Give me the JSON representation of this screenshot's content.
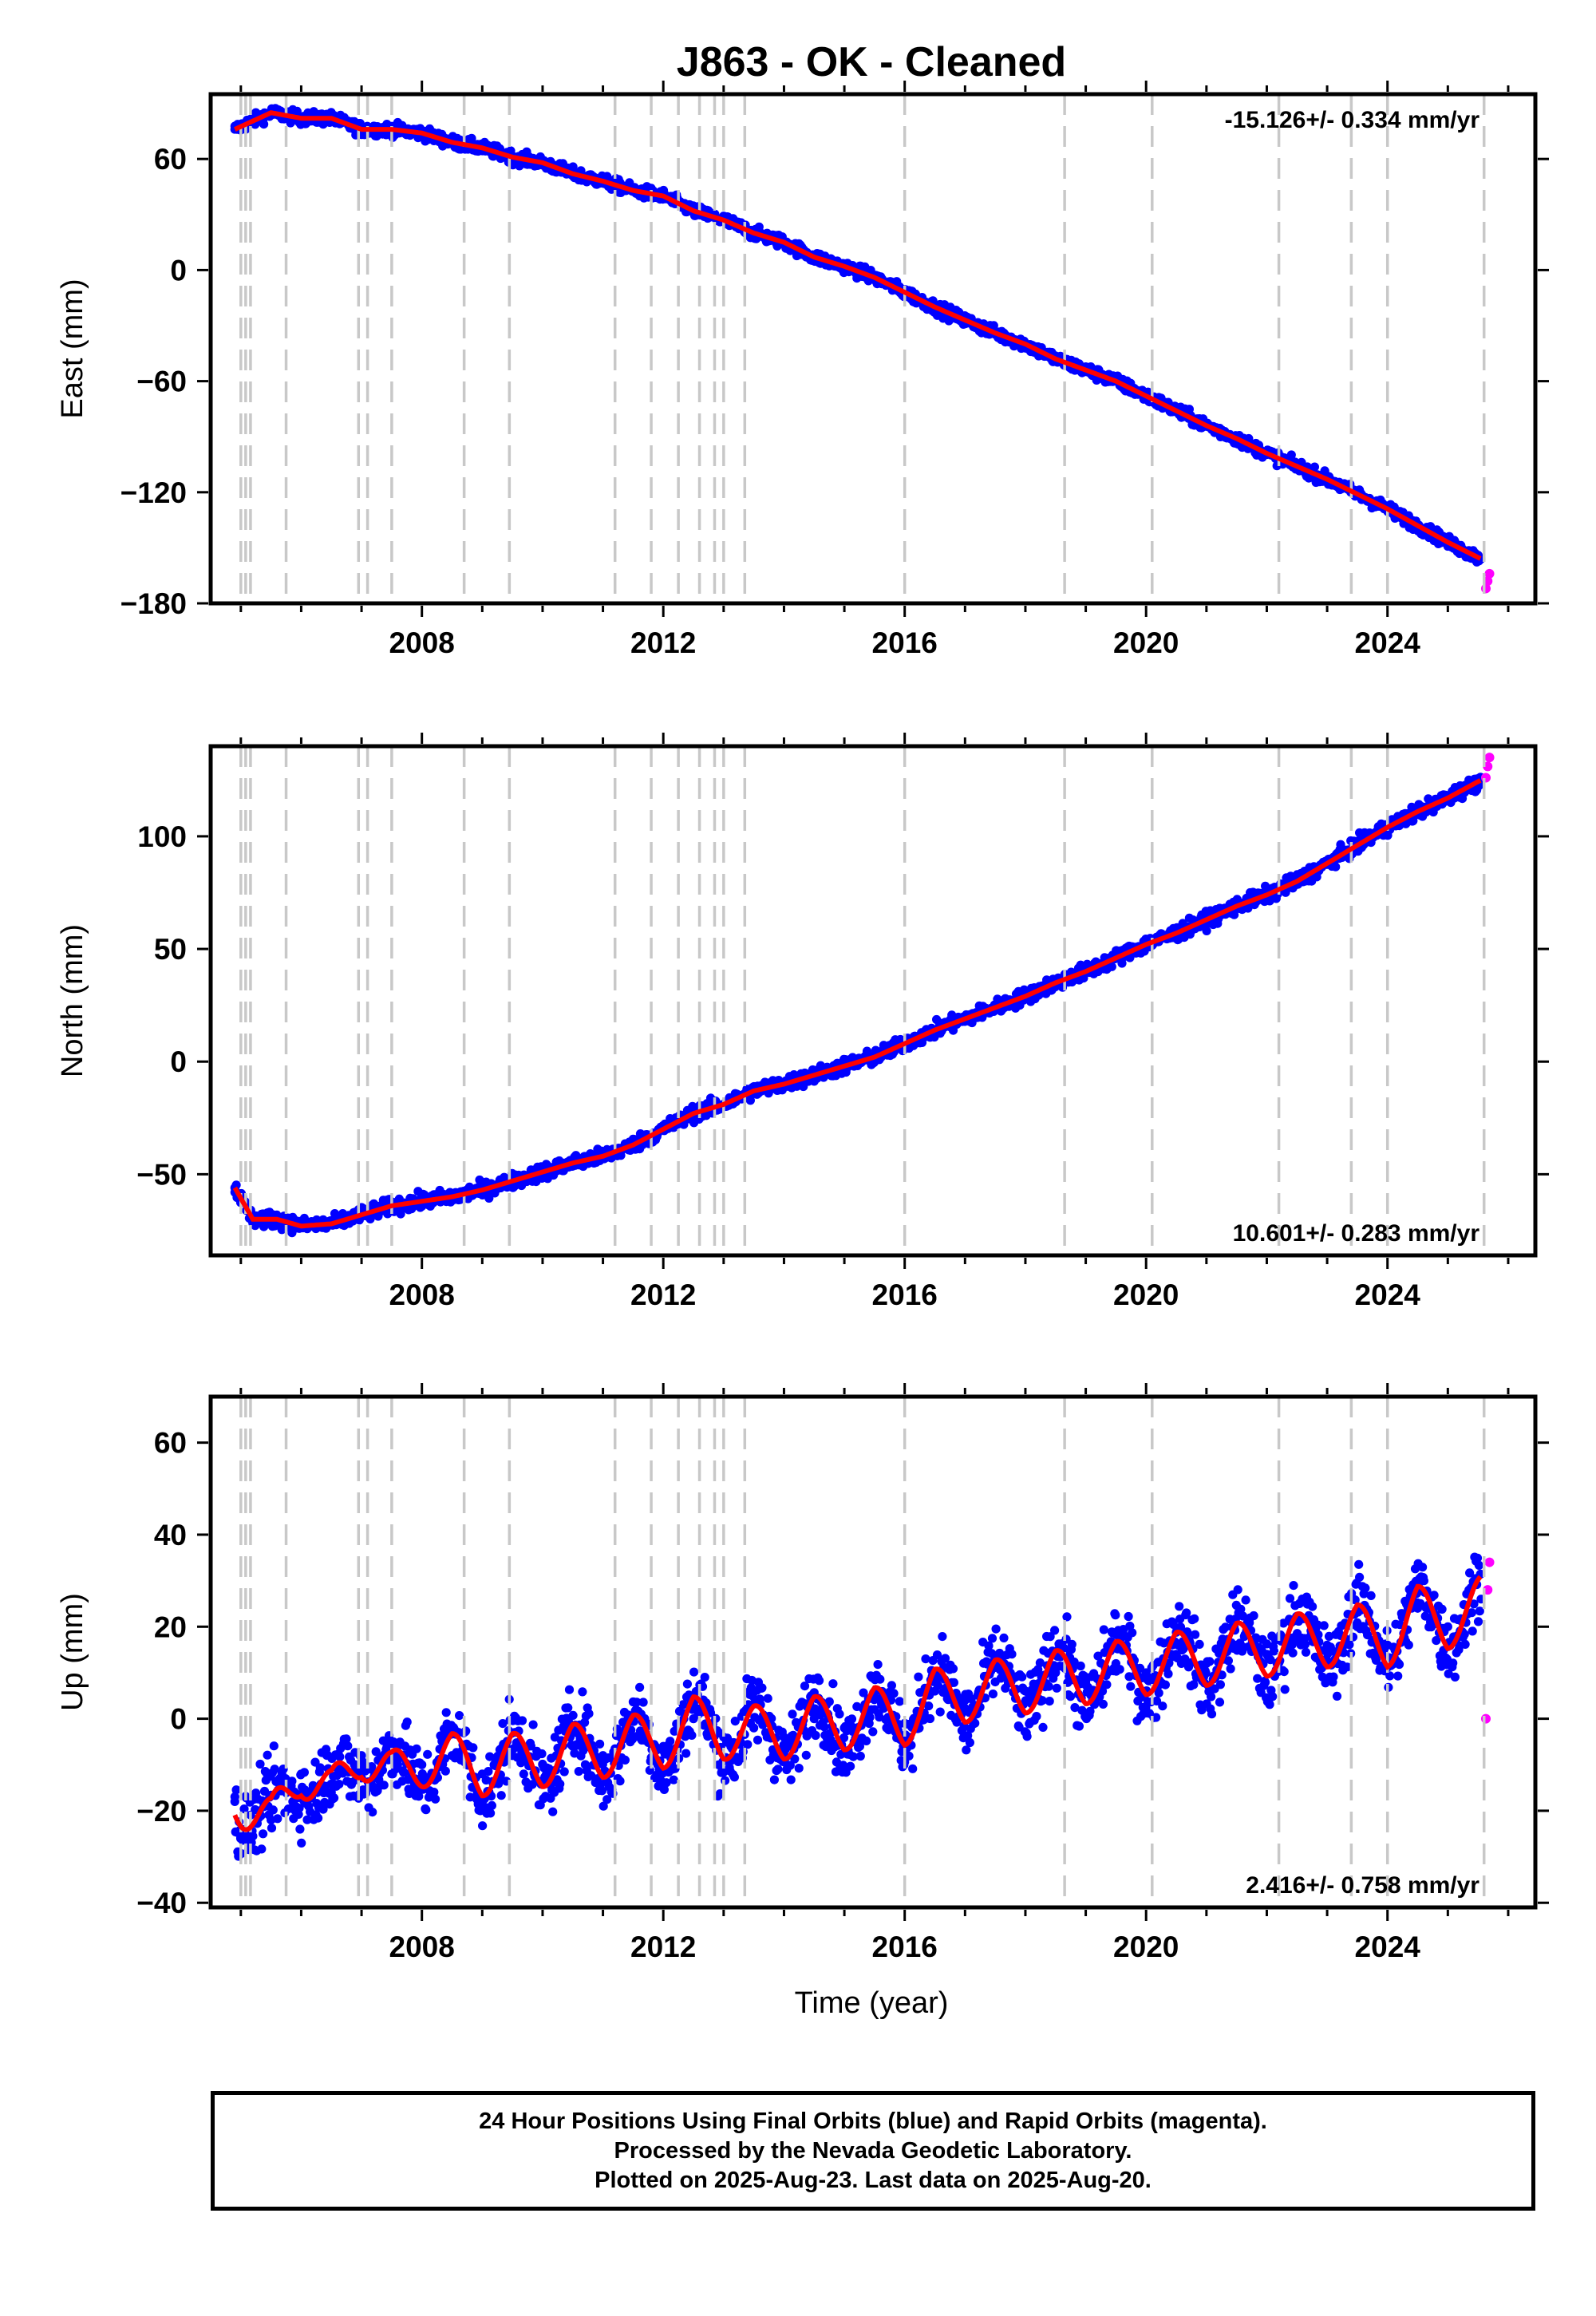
{
  "title": "J863  - OK - Cleaned",
  "xlabel": "Time (year)",
  "footer": {
    "line1": "24 Hour Positions Using Final Orbits (blue) and Rapid Orbits (magenta).",
    "line2": "Processed by the Nevada Geodetic Laboratory.",
    "line3": "Plotted on 2025-Aug-23. Last data on 2025-Aug-20."
  },
  "colors": {
    "final_orbits": "#0000ff",
    "rapid_orbits": "#ff00ff",
    "model": "#ff0000",
    "event_lines": "#c8c8c8"
  },
  "chart_data": [
    {
      "type": "scatter",
      "ylabel": "East (mm)",
      "rate_label": "-15.126+/- 0.334 mm/yr",
      "rate_position": "top-right",
      "xlim": [
        2004.5,
        2026.45
      ],
      "ylim": [
        -180,
        95
      ],
      "xticks": [
        2008,
        2012,
        2016,
        2020,
        2024
      ],
      "yticks": [
        60,
        0,
        -60,
        -120,
        -180
      ],
      "event_lines_x": [
        2005.0,
        2005.08,
        2005.16,
        2005.75,
        2006.95,
        2007.1,
        2007.5,
        2008.7,
        2009.45,
        2011.2,
        2011.8,
        2012.25,
        2012.6,
        2012.85,
        2013.0,
        2013.35,
        2016.0,
        2018.65,
        2020.1,
        2022.2,
        2023.4,
        2024.0,
        2025.6
      ],
      "series": [
        {
          "name": "Final Orbits (blue)",
          "x": [
            2004.9,
            2005.5,
            2006.0,
            2006.5,
            2007.0,
            2007.5,
            2008.0,
            2008.5,
            2009.0,
            2009.5,
            2010.0,
            2010.5,
            2011.0,
            2011.5,
            2012.0,
            2012.5,
            2013.0,
            2013.5,
            2014.0,
            2014.5,
            2015.0,
            2015.5,
            2016.0,
            2016.5,
            2017.0,
            2017.5,
            2018.0,
            2018.5,
            2019.0,
            2019.5,
            2020.0,
            2020.5,
            2021.0,
            2021.5,
            2022.0,
            2022.5,
            2023.0,
            2023.5,
            2024.0,
            2024.5,
            2025.0,
            2025.55
          ],
          "y": [
            76,
            85,
            82,
            82,
            76,
            76,
            74,
            69,
            66,
            61,
            58,
            52,
            48,
            43,
            40,
            32,
            27,
            20,
            15,
            7,
            2,
            -4,
            -12,
            -20,
            -27,
            -34,
            -40,
            -48,
            -54,
            -60,
            -68,
            -76,
            -84,
            -91,
            -99,
            -106,
            -113,
            -121,
            -129,
            -138,
            -147,
            -156
          ]
        },
        {
          "name": "Rapid Orbits (magenta)",
          "x": [
            2025.63,
            2025.66,
            2025.69
          ],
          "y": [
            -172,
            -168,
            -164
          ]
        }
      ]
    },
    {
      "type": "scatter",
      "ylabel": "North (mm)",
      "rate_label": "10.601+/- 0.283 mm/yr",
      "rate_position": "bottom-right",
      "xlim": [
        2004.5,
        2026.45
      ],
      "ylim": [
        -86,
        140
      ],
      "xticks": [
        2008,
        2012,
        2016,
        2020,
        2024
      ],
      "yticks": [
        100,
        50,
        0,
        -50
      ],
      "event_lines_x": [
        2005.0,
        2005.08,
        2005.16,
        2005.75,
        2006.95,
        2007.1,
        2007.5,
        2008.7,
        2009.45,
        2011.2,
        2011.8,
        2012.25,
        2012.6,
        2012.85,
        2013.0,
        2013.35,
        2016.0,
        2018.65,
        2020.1,
        2022.2,
        2023.4,
        2024.0,
        2025.6
      ],
      "series": [
        {
          "name": "Final Orbits (blue)",
          "x": [
            2004.9,
            2005.2,
            2005.6,
            2006.0,
            2006.5,
            2007.0,
            2007.5,
            2008.0,
            2008.5,
            2009.0,
            2009.5,
            2010.0,
            2010.5,
            2011.0,
            2011.5,
            2012.0,
            2012.5,
            2013.0,
            2013.5,
            2014.0,
            2014.5,
            2015.0,
            2015.5,
            2016.0,
            2016.5,
            2017.0,
            2017.5,
            2018.0,
            2018.5,
            2019.0,
            2019.5,
            2020.0,
            2020.5,
            2021.0,
            2021.5,
            2022.0,
            2022.5,
            2023.0,
            2023.5,
            2024.0,
            2024.5,
            2025.0,
            2025.55
          ],
          "y": [
            -56,
            -70,
            -70,
            -73,
            -72,
            -68,
            -64,
            -62,
            -60,
            -57,
            -53,
            -49,
            -45,
            -42,
            -37,
            -30,
            -23,
            -19,
            -13,
            -10,
            -6,
            -2,
            2,
            8,
            14,
            19,
            24,
            29,
            35,
            40,
            46,
            52,
            57,
            63,
            69,
            74,
            80,
            88,
            96,
            104,
            111,
            117,
            125
          ]
        },
        {
          "name": "Rapid Orbits (magenta)",
          "x": [
            2025.63,
            2025.66,
            2025.69
          ],
          "y": [
            126,
            131,
            135
          ]
        }
      ]
    },
    {
      "type": "scatter",
      "ylabel": "Up (mm)",
      "rate_label": "2.416+/- 0.758 mm/yr",
      "rate_position": "bottom-right",
      "xlim": [
        2004.5,
        2026.45
      ],
      "ylim": [
        -41,
        70
      ],
      "xticks": [
        2008,
        2012,
        2016,
        2020,
        2024
      ],
      "yticks": [
        60,
        40,
        20,
        0,
        -20,
        -40
      ],
      "event_lines_x": [
        2005.0,
        2005.08,
        2005.16,
        2005.75,
        2006.95,
        2007.1,
        2007.5,
        2008.7,
        2009.45,
        2011.2,
        2011.8,
        2012.25,
        2012.6,
        2012.85,
        2013.0,
        2013.35,
        2016.0,
        2018.65,
        2020.1,
        2022.2,
        2023.4,
        2024.0,
        2025.6
      ],
      "series": [
        {
          "name": "Final Orbits (blue)",
          "x": [
            2004.9,
            2005.5,
            2006.0,
            2006.5,
            2007.0,
            2007.5,
            2008.0,
            2008.5,
            2009.0,
            2009.5,
            2010.0,
            2010.5,
            2011.0,
            2011.5,
            2012.0,
            2012.5,
            2013.0,
            2013.5,
            2014.0,
            2014.5,
            2015.0,
            2015.5,
            2016.0,
            2016.5,
            2017.0,
            2017.5,
            2018.0,
            2018.5,
            2019.0,
            2019.5,
            2020.0,
            2020.5,
            2021.0,
            2021.5,
            2022.0,
            2022.5,
            2023.0,
            2023.5,
            2024.0,
            2024.5,
            2025.0,
            2025.55
          ],
          "y": [
            -18,
            -22,
            -12,
            -16,
            -8,
            -12,
            -10,
            -8,
            -12,
            -8,
            -10,
            -6,
            -8,
            -4,
            -6,
            0,
            -4,
            -2,
            -4,
            0,
            -2,
            2,
            -1,
            6,
            4,
            8,
            6,
            10,
            8,
            12,
            10,
            14,
            12,
            16,
            14,
            18,
            16,
            20,
            16,
            24,
            20,
            26
          ]
        },
        {
          "name": "Rapid Orbits (magenta)",
          "x": [
            2025.63,
            2025.66,
            2025.69
          ],
          "y": [
            0,
            28,
            34
          ]
        }
      ]
    }
  ]
}
